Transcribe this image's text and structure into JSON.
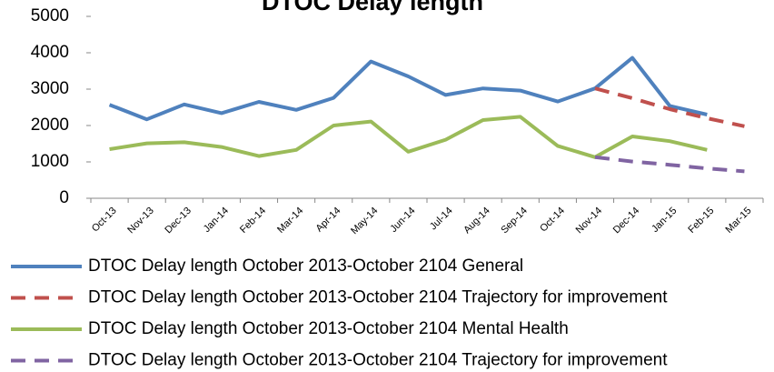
{
  "chart_data": {
    "type": "line",
    "title": "DTOC Delay length",
    "categories": [
      "Oct-13",
      "Nov-13",
      "Dec-13",
      "Jan-14",
      "Feb-14",
      "Mar-14",
      "Apr-14",
      "May-14",
      "Jun-14",
      "Jul-14",
      "Aug-14",
      "Sep-14",
      "Oct-14",
      "Nov-14",
      "Dec-14",
      "Jan-15",
      "Feb-15",
      "Mar-15"
    ],
    "series": [
      {
        "name": "DTOC Delay length October 2013-October 2104 General",
        "color": "#4f81bd",
        "dashed": false,
        "values": [
          2570,
          2170,
          2580,
          2340,
          2650,
          2430,
          2760,
          3760,
          3350,
          2840,
          3020,
          2960,
          2660,
          3020,
          3860,
          2540,
          2300,
          null
        ]
      },
      {
        "name": "DTOC Delay length October 2013-October 2104 Trajectory for improvement",
        "color": "#c0504d",
        "dashed": true,
        "values": [
          null,
          null,
          null,
          null,
          null,
          null,
          null,
          null,
          null,
          null,
          null,
          null,
          null,
          3020,
          2750,
          2450,
          2200,
          1980
        ]
      },
      {
        "name": "DTOC Delay length October 2013-October 2104 Mental Health",
        "color": "#9bbb59",
        "dashed": false,
        "values": [
          1350,
          1510,
          1540,
          1410,
          1160,
          1330,
          2000,
          2110,
          1280,
          1610,
          2150,
          2240,
          1440,
          1130,
          1700,
          1570,
          1330,
          null
        ]
      },
      {
        "name": "DTOC Delay length October 2013-October 2104 Trajectory for improvement",
        "color": "#8064a2",
        "dashed": true,
        "values": [
          null,
          null,
          null,
          null,
          null,
          null,
          null,
          null,
          null,
          null,
          null,
          null,
          null,
          1130,
          1010,
          920,
          820,
          740
        ]
      }
    ],
    "ylim": [
      0,
      5000
    ],
    "yticks": [
      0,
      1000,
      2000,
      3000,
      4000,
      5000
    ],
    "grid": false,
    "legend": "bottom"
  }
}
